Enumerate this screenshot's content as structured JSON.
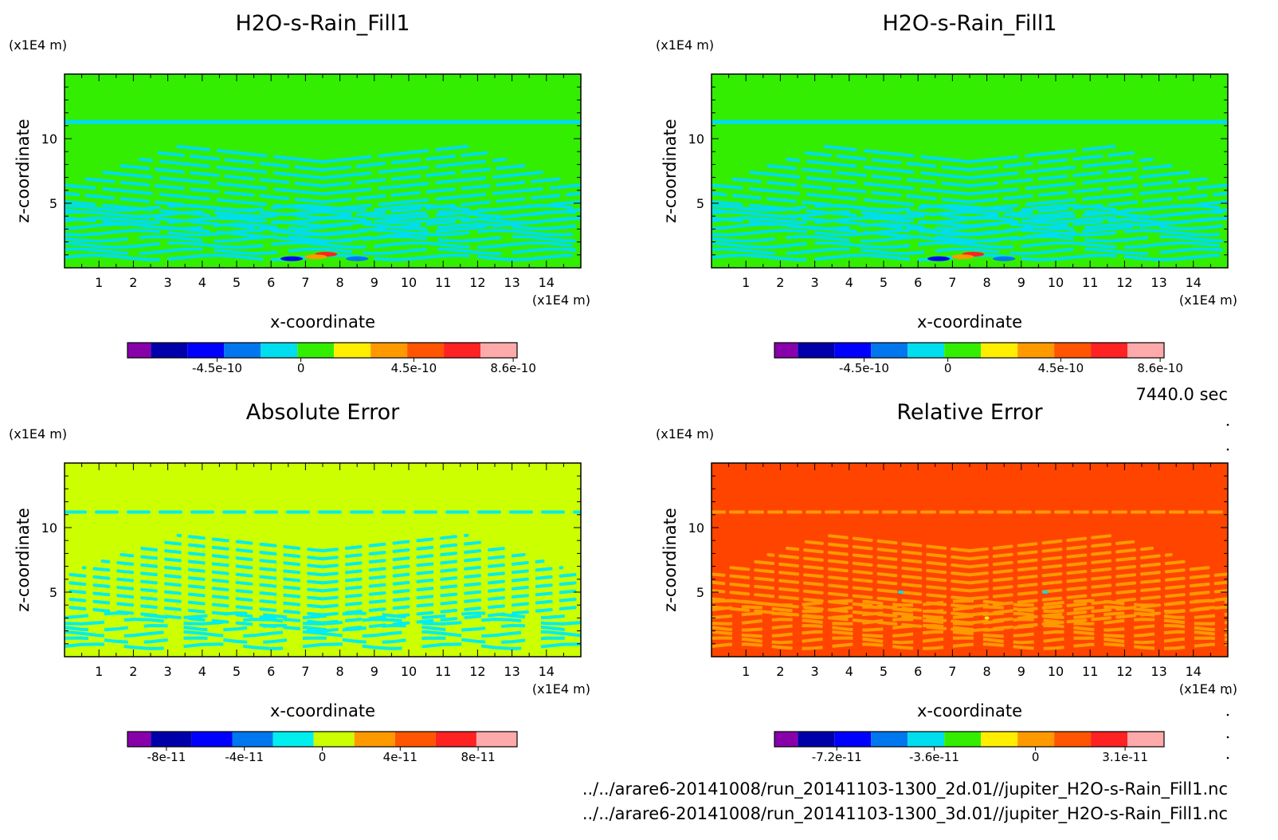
{
  "time_label": "7440.0 sec",
  "footer": {
    "line1": "../../arare6-20141008/run_20141103-1300_2d.01//jupiter_H2O-s-Rain_Fill1.nc",
    "line2": "../../arare6-20141008/run_20141103-1300_3d.01//jupiter_H2O-s-Rain_Fill1.nc"
  },
  "chart_data": [
    {
      "type": "heatmap",
      "title": "H2O-s-Rain_Fill1",
      "xlabel": "x-coordinate",
      "ylabel": "z-coordinate",
      "x_unit": "(x1E4 m)",
      "y_unit": "(x1E4 m)",
      "xlim": [
        0,
        15
      ],
      "ylim": [
        0,
        15
      ],
      "x_ticks": [
        1,
        2,
        3,
        4,
        5,
        6,
        7,
        8,
        9,
        10,
        11,
        12,
        13,
        14
      ],
      "y_ticks": [
        5,
        10
      ],
      "background": "#33ee00",
      "pattern": "rain",
      "colorbar": {
        "colors": [
          "#8800aa",
          "#0000aa",
          "#0000ff",
          "#0077ee",
          "#00ddee",
          "#33ee00",
          "#ffee00",
          "#ff9900",
          "#ff5500",
          "#ff2222",
          "#ffaaaa"
        ],
        "tick_labels": [
          {
            "label": "-4.5e-10",
            "frac": 0.23
          },
          {
            "label": "0",
            "frac": 0.445
          },
          {
            "label": "4.5e-10",
            "frac": 0.735
          },
          {
            "label": "8.6e-10",
            "frac": 0.99
          }
        ]
      }
    },
    {
      "type": "heatmap",
      "title": "H2O-s-Rain_Fill1",
      "xlabel": "x-coordinate",
      "ylabel": "z-coordinate",
      "x_unit": "(x1E4 m)",
      "y_unit": "(x1E4 m)",
      "xlim": [
        0,
        15
      ],
      "ylim": [
        0,
        15
      ],
      "x_ticks": [
        1,
        2,
        3,
        4,
        5,
        6,
        7,
        8,
        9,
        10,
        11,
        12,
        13,
        14
      ],
      "y_ticks": [
        5,
        10
      ],
      "background": "#33ee00",
      "pattern": "rain",
      "colorbar": {
        "colors": [
          "#8800aa",
          "#0000aa",
          "#0000ff",
          "#0077ee",
          "#00ddee",
          "#33ee00",
          "#ffee00",
          "#ff9900",
          "#ff5500",
          "#ff2222",
          "#ffaaaa"
        ],
        "tick_labels": [
          {
            "label": "-4.5e-10",
            "frac": 0.23
          },
          {
            "label": "0",
            "frac": 0.445
          },
          {
            "label": "4.5e-10",
            "frac": 0.735
          },
          {
            "label": "8.6e-10",
            "frac": 0.99
          }
        ]
      }
    },
    {
      "type": "heatmap",
      "title": "Absolute Error",
      "xlabel": "x-coordinate",
      "ylabel": "z-coordinate",
      "x_unit": "(x1E4 m)",
      "y_unit": "(x1E4 m)",
      "xlim": [
        0,
        15
      ],
      "ylim": [
        0,
        15
      ],
      "x_ticks": [
        1,
        2,
        3,
        4,
        5,
        6,
        7,
        8,
        9,
        10,
        11,
        12,
        13,
        14
      ],
      "y_ticks": [
        5,
        10
      ],
      "background": "#ccff00",
      "pattern": "abs",
      "colorbar": {
        "colors": [
          "#8800aa",
          "#0000aa",
          "#0000ff",
          "#0077ee",
          "#00eeee",
          "#ccff00",
          "#ff9900",
          "#ff5500",
          "#ff2222",
          "#ffaaaa"
        ],
        "tick_labels": [
          {
            "label": "-8e-11",
            "frac": 0.1
          },
          {
            "label": "-4e-11",
            "frac": 0.3
          },
          {
            "label": "0",
            "frac": 0.5
          },
          {
            "label": "4e-11",
            "frac": 0.7
          },
          {
            "label": "8e-11",
            "frac": 0.9
          }
        ]
      }
    },
    {
      "type": "heatmap",
      "title": "Relative Error",
      "xlabel": "x-coordinate",
      "ylabel": "z-coordinate",
      "x_unit": "(x1E4 m)",
      "y_unit": "(x1E4 m)",
      "xlim": [
        0,
        15
      ],
      "ylim": [
        0,
        15
      ],
      "x_ticks": [
        1,
        2,
        3,
        4,
        5,
        6,
        7,
        8,
        9,
        10,
        11,
        12,
        13,
        14
      ],
      "y_ticks": [
        5,
        10
      ],
      "background": "#ff4400",
      "pattern": "rel",
      "colorbar": {
        "colors": [
          "#8800aa",
          "#0000aa",
          "#0000ff",
          "#0077ee",
          "#00ddee",
          "#33ee00",
          "#ffee00",
          "#ff9900",
          "#ff5500",
          "#ff2222",
          "#ffaaaa"
        ],
        "tick_labels": [
          {
            "label": "-7.2e-11",
            "frac": 0.16
          },
          {
            "label": "-3.6e-11",
            "frac": 0.41
          },
          {
            "label": "0",
            "frac": 0.67
          },
          {
            "label": "3.1e-11",
            "frac": 0.9
          }
        ]
      }
    }
  ]
}
